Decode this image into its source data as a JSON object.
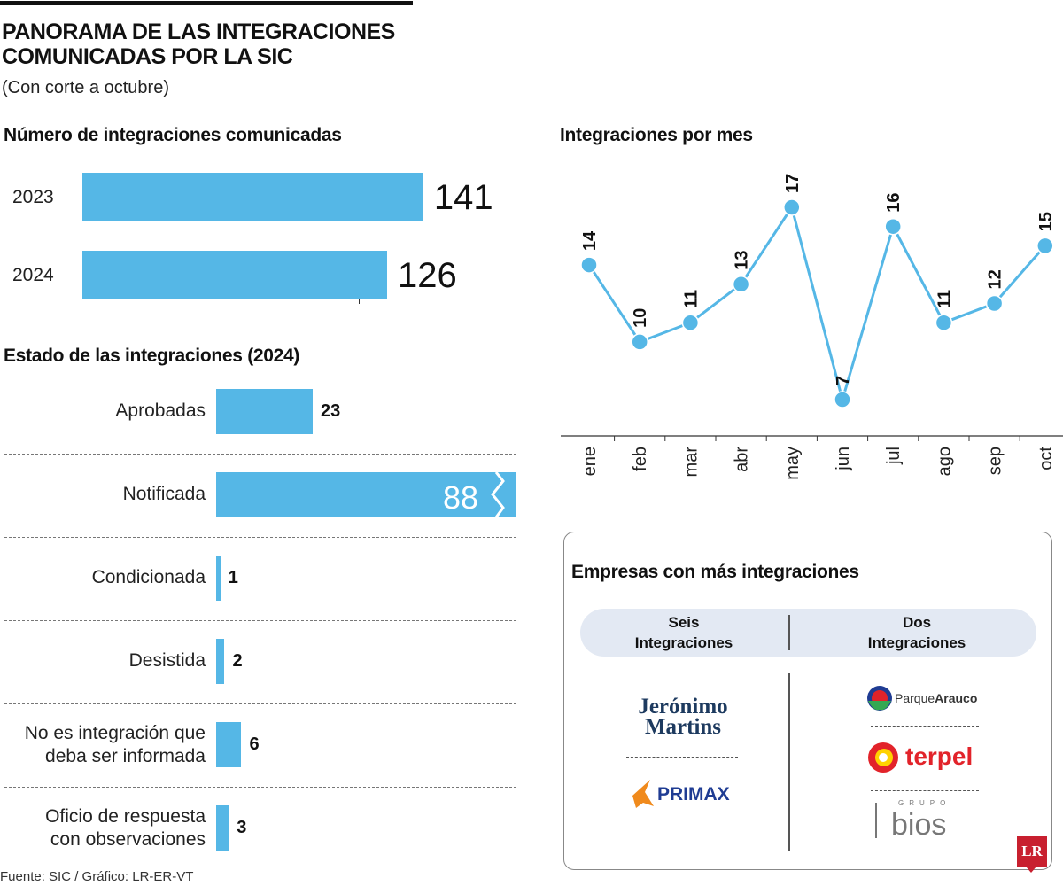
{
  "header": {
    "title_line1": "PANORAMA DE LAS INTEGRACIONES",
    "title_line2": "COMUNICADAS POR LA SIC",
    "subtitle": "(Con corte a octubre)"
  },
  "chart_data": [
    {
      "type": "bar",
      "title": "Número de integraciones comunicadas",
      "orientation": "horizontal",
      "categories": [
        "2023",
        "2024"
      ],
      "values": [
        141,
        126
      ],
      "color": "#55b7e6"
    },
    {
      "type": "bar",
      "title": "Estado de las integraciones (2024)",
      "orientation": "horizontal",
      "categories": [
        "Aprobadas",
        "Notificada",
        "Condicionada",
        "Desistida",
        "No es integración que deba ser informada",
        "Oficio de respuesta con observaciones"
      ],
      "values": [
        23,
        88,
        1,
        2,
        6,
        3
      ],
      "labels": [
        "23",
        "88",
        "1",
        "2",
        "6",
        "3"
      ],
      "broken_bar": "Notificada",
      "color": "#55b7e6"
    },
    {
      "type": "line",
      "title": "Integraciones por mes",
      "categories": [
        "ene",
        "feb",
        "mar",
        "abr",
        "may",
        "jun",
        "jul",
        "ago",
        "sep",
        "oct"
      ],
      "values": [
        14,
        10,
        11,
        13,
        17,
        7,
        16,
        11,
        12,
        15
      ],
      "color": "#55b7e6"
    }
  ],
  "cats2": [
    "Aprobadas",
    "Notificada",
    "Condicionada",
    "Desistida",
    "No es integración que\ndeba ser informada",
    "Oficio de respuesta\ncon observaciones"
  ],
  "companies": {
    "title": "Empresas con más integraciones",
    "col1": "Seis\nIntegraciones",
    "col2": "Dos\nIntegraciones",
    "six": [
      "Jerónimo Martins",
      "PRIMAX"
    ],
    "two": [
      "ParqueArauco",
      "terpel",
      "GRUPO bios"
    ]
  },
  "logo": "LR",
  "footer": "Fuente: SIC / Gráfico: LR-ER-VT"
}
